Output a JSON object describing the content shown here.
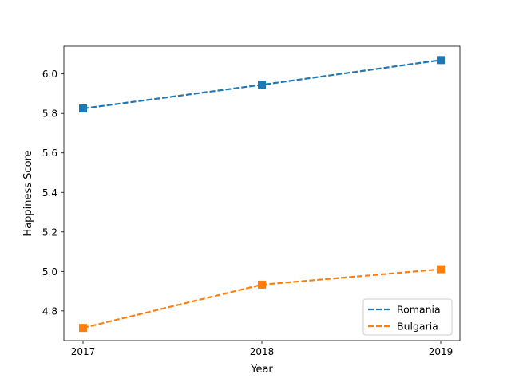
{
  "chart_data": {
    "type": "line",
    "title": "",
    "xlabel": "Year",
    "ylabel": "Happiness Score",
    "x": [
      2017,
      2018,
      2019
    ],
    "xticks": [
      "2017",
      "2018",
      "2019"
    ],
    "yticks": [
      "4.8",
      "5.0",
      "5.2",
      "5.4",
      "5.6",
      "5.8",
      "6.0"
    ],
    "ylim": [
      4.65,
      6.14
    ],
    "grid": false,
    "legend_position": "lower-right",
    "series": [
      {
        "name": "Romania",
        "color": "#1f77b4",
        "marker": "square",
        "linestyle": "dashed",
        "values": [
          5.825,
          5.945,
          6.07
        ]
      },
      {
        "name": "Bulgaria",
        "color": "#ff7f0e",
        "marker": "square",
        "linestyle": "dashed",
        "values": [
          4.714,
          4.933,
          5.011
        ]
      }
    ]
  }
}
